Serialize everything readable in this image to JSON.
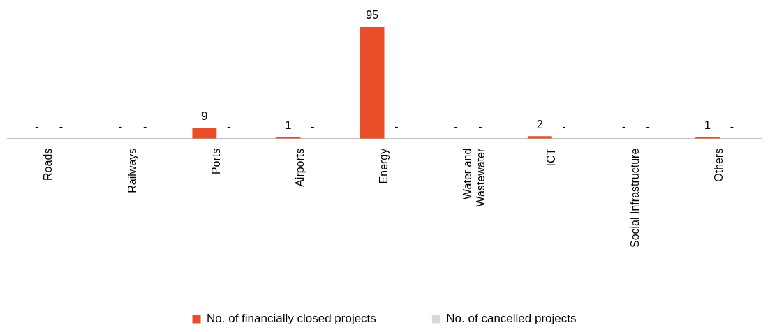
{
  "chart_data": {
    "type": "bar",
    "categories": [
      "Roads",
      "Railways",
      "Ports",
      "Airports",
      "Energy",
      "Water and\nWastewater",
      "ICT",
      "Social Infrastructure",
      "Others"
    ],
    "series": [
      {
        "name": "No. of financially closed projects",
        "color": "#e84e2a",
        "values": [
          null,
          null,
          9,
          1,
          95,
          null,
          2,
          null,
          1
        ],
        "value_labels": [
          "-",
          "-",
          "9",
          "1",
          "95",
          "-",
          "2",
          "-",
          "1"
        ]
      },
      {
        "name": "No. of cancelled projects",
        "color": "#d9d9d9",
        "values": [
          null,
          null,
          null,
          null,
          null,
          null,
          null,
          null,
          null
        ],
        "value_labels": [
          "-",
          "-",
          "-",
          "-",
          "-",
          "-",
          "-",
          "-",
          "-"
        ]
      }
    ],
    "legend": "bottom",
    "grid": false
  }
}
